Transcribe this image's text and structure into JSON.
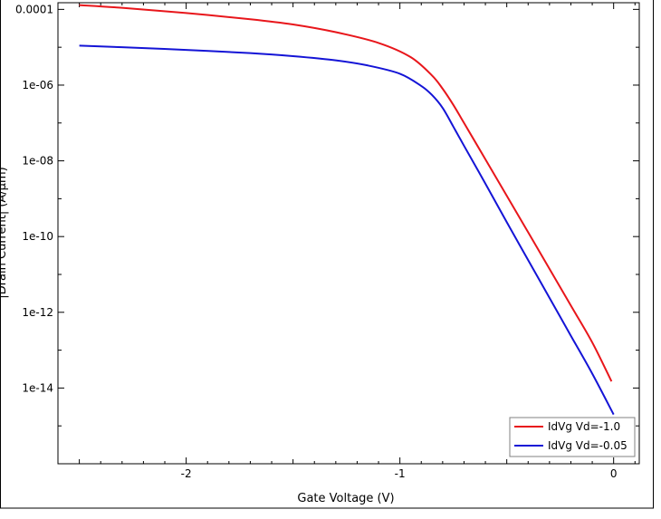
{
  "chart_data": {
    "type": "line",
    "title": "",
    "xlabel": "Gate Voltage (V)",
    "ylabel": "|Drain Current| (A/µm)",
    "xlim": [
      -2.6,
      0.12
    ],
    "ylim": [
      1e-16,
      0.00015
    ],
    "y_scale": "log",
    "grid": false,
    "legend_position": "bottom-right",
    "x_ticks": [
      {
        "value": -2,
        "label": "-2"
      },
      {
        "value": -1,
        "label": "-1"
      },
      {
        "value": 0,
        "label": "0"
      }
    ],
    "y_ticks": [
      {
        "value": 0.0001,
        "label": "0.0001"
      },
      {
        "value": 1e-06,
        "label": "1e-06"
      },
      {
        "value": 1e-08,
        "label": "1e-08"
      },
      {
        "value": 1e-10,
        "label": "1e-10"
      },
      {
        "value": 1e-12,
        "label": "1e-12"
      },
      {
        "value": 1e-14,
        "label": "1e-14"
      }
    ],
    "series": [
      {
        "name": "IdVg Vd=-1.0",
        "color": "#e8161b",
        "x": [
          -2.5,
          -2.3,
          -2.0,
          -1.7,
          -1.5,
          -1.3,
          -1.1,
          -0.95,
          -0.85,
          -0.8,
          -0.75,
          -0.7,
          -0.6,
          -0.5,
          -0.4,
          -0.3,
          -0.2,
          -0.1,
          -0.01
        ],
        "y": [
          0.00013,
          0.00011,
          8e-05,
          5.5e-05,
          4e-05,
          2.5e-05,
          1.3e-05,
          5.5e-06,
          1.8e-06,
          8e-07,
          3e-07,
          1e-07,
          1.1e-08,
          1.2e-09,
          1.3e-10,
          1.4e-11,
          1.5e-12,
          1.6e-13,
          1.5e-14
        ]
      },
      {
        "name": "IdVg Vd=-0.05",
        "color": "#1414d6",
        "x": [
          -2.5,
          -2.3,
          -2.0,
          -1.7,
          -1.5,
          -1.3,
          -1.15,
          -1.0,
          -0.9,
          -0.85,
          -0.8,
          -0.75,
          -0.7,
          -0.6,
          -0.5,
          -0.4,
          -0.3,
          -0.2,
          -0.1,
          0.0
        ],
        "y": [
          1.1e-05,
          1e-05,
          8.5e-06,
          7e-06,
          5.8e-06,
          4.5e-06,
          3.3e-06,
          2e-06,
          9.5e-07,
          5.5e-07,
          2.5e-07,
          8e-08,
          2.5e-08,
          2.5e-09,
          2.4e-10,
          2.4e-11,
          2.4e-12,
          2.4e-13,
          2.4e-14,
          2e-15
        ]
      }
    ]
  }
}
